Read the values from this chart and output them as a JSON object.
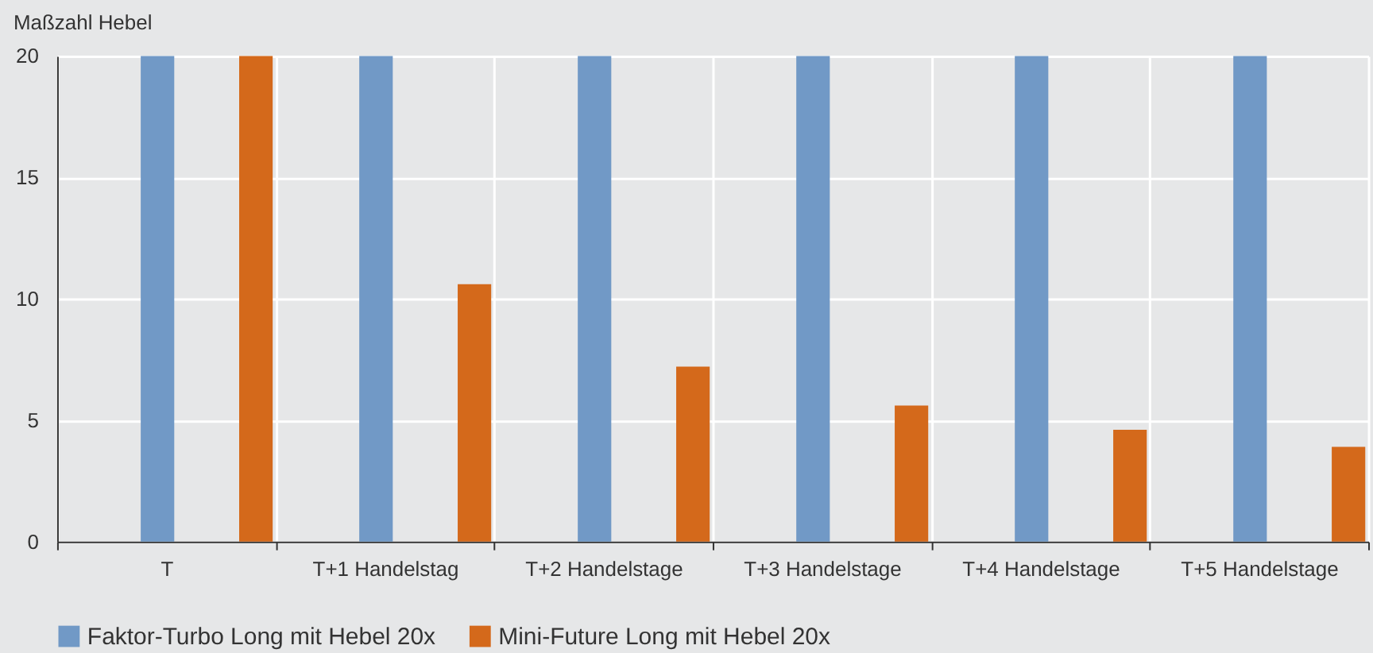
{
  "chart_data": {
    "type": "bar",
    "ylabel": "Maßzahl Hebel",
    "categories": [
      "T",
      "T+1 Handelstag",
      "T+2 Handelstage",
      "T+3 Handelstage",
      "T+4 Handelstage",
      "T+5 Handelstage"
    ],
    "series": [
      {
        "name": "Faktor-Turbo Long mit Hebel 20x",
        "color": "#7199c6",
        "values": [
          20,
          20,
          20,
          20,
          20,
          20
        ]
      },
      {
        "name": "Mini-Future Long mit Hebel 20x",
        "color": "#d4691b",
        "values": [
          20,
          10.6,
          7.2,
          5.6,
          4.6,
          3.9
        ]
      }
    ],
    "ylim": [
      0,
      20
    ],
    "yticks": [
      0,
      5,
      10,
      15,
      20
    ],
    "grid": true,
    "legend": "bottom left"
  }
}
